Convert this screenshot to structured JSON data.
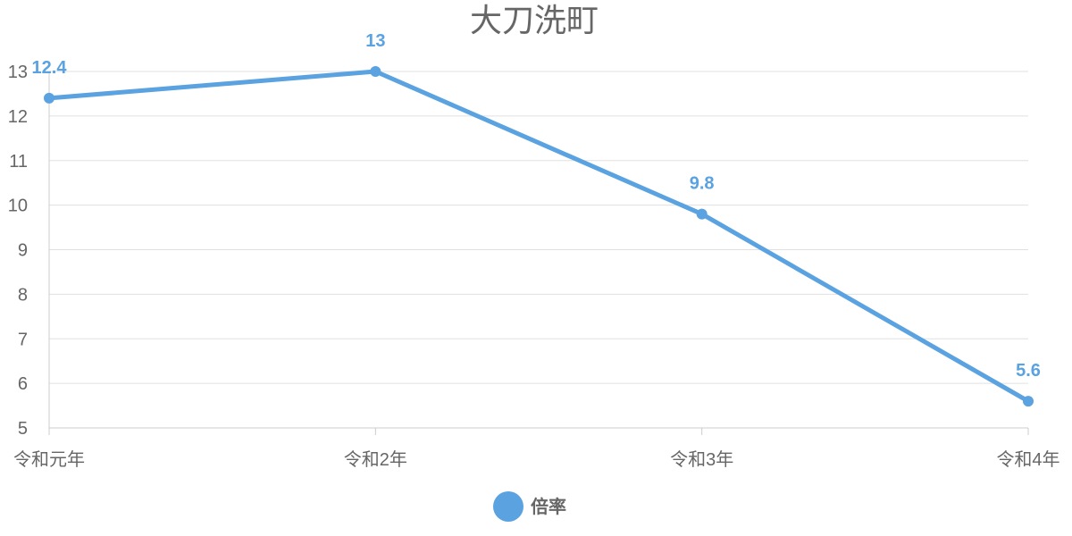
{
  "chart_data": {
    "type": "line",
    "title": "大刀洗町",
    "categories": [
      "令和元年",
      "令和2年",
      "令和3年",
      "令和4年"
    ],
    "series": [
      {
        "name": "倍率",
        "values": [
          12.4,
          13,
          9.8,
          5.6
        ]
      }
    ],
    "data_labels": [
      "12.4",
      "13",
      "9.8",
      "5.6"
    ],
    "y_ticks": [
      "5",
      "6",
      "7",
      "8",
      "9",
      "10",
      "11",
      "12",
      "13"
    ],
    "ylim": [
      5,
      13
    ],
    "xlabel": "",
    "ylabel": "",
    "grid": true,
    "legend_position": "bottom",
    "colors": {
      "series": "#5aa2e0",
      "grid": "#e0e0e0",
      "axis": "#cccccc",
      "text": "#666666"
    }
  }
}
